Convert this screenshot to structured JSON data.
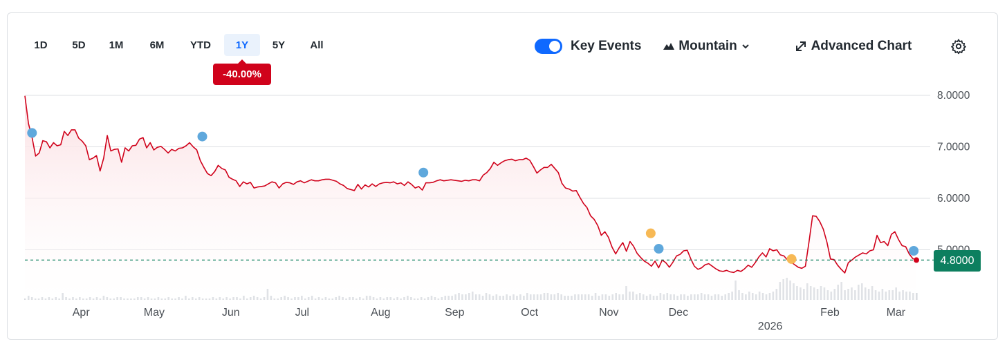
{
  "ranges": [
    {
      "label": "1D",
      "active": false
    },
    {
      "label": "5D",
      "active": false
    },
    {
      "label": "1M",
      "active": false
    },
    {
      "label": "6M",
      "active": false
    },
    {
      "label": "YTD",
      "active": false
    },
    {
      "label": "1Y",
      "active": true
    },
    {
      "label": "5Y",
      "active": false
    },
    {
      "label": "All",
      "active": false
    }
  ],
  "change_badge": "-40.00%",
  "controls": {
    "key_events_label": "Key Events",
    "key_events_on": true,
    "chart_type_label": "Mountain",
    "advanced_chart_label": "Advanced Chart",
    "icons": [
      "toggle-switch-icon",
      "mountain-chart-icon",
      "chevron-down-icon",
      "expand-arrows-icon",
      "gear-icon"
    ]
  },
  "current_price_label": "4.8000",
  "colors": {
    "line": "#d0021b",
    "area_fill": "#fbdfe2",
    "accent": "#0f69ff",
    "price_tag": "#0d7f5f",
    "dividend_event": "#5fa8dc",
    "split_event": "#f7b955",
    "volume": "#d7dadf"
  },
  "chart_data": {
    "type": "area",
    "y_ticks": [
      "8.0000",
      "7.0000",
      "6.0000",
      "5.0000"
    ],
    "ylim": [
      4.0,
      8.0
    ],
    "grid": true,
    "x_ticks": [
      {
        "label": "Apr",
        "t": 0.063
      },
      {
        "label": "May",
        "t": 0.145
      },
      {
        "label": "Jun",
        "t": 0.231
      },
      {
        "label": "Jul",
        "t": 0.311
      },
      {
        "label": "Aug",
        "t": 0.399
      },
      {
        "label": "Sep",
        "t": 0.482
      },
      {
        "label": "Oct",
        "t": 0.566
      },
      {
        "label": "Nov",
        "t": 0.655
      },
      {
        "label": "Dec",
        "t": 0.733
      },
      {
        "label": "Feb",
        "t": 0.903
      },
      {
        "label": "Mar",
        "t": 0.977
      }
    ],
    "year_marker": {
      "label": "2026",
      "t": 0.836
    },
    "reference_price": 4.8,
    "series": [
      {
        "values": [
          7.99,
          7.45,
          7.18,
          6.82,
          6.88,
          7.12,
          7.1,
          6.98,
          7.08,
          7.02,
          7.04,
          7.3,
          7.22,
          7.33,
          7.33,
          7.17,
          7.11,
          7.02,
          6.75,
          6.78,
          6.83,
          6.53,
          6.78,
          7.22,
          6.92,
          6.95,
          6.96,
          6.7,
          6.98,
          6.92,
          7.02,
          7.03,
          7.15,
          7.18,
          6.98,
          7.08,
          6.94,
          6.99,
          7.01,
          6.95,
          6.88,
          6.95,
          6.92,
          6.97,
          6.98,
          7.02,
          7.08,
          7.0,
          6.94,
          6.73,
          6.6,
          6.48,
          6.44,
          6.52,
          6.64,
          6.58,
          6.55,
          6.41,
          6.37,
          6.34,
          6.23,
          6.32,
          6.28,
          6.31,
          6.2,
          6.22,
          6.23,
          6.24,
          6.28,
          6.32,
          6.3,
          6.2,
          6.28,
          6.31,
          6.3,
          6.27,
          6.32,
          6.34,
          6.3,
          6.33,
          6.36,
          6.34,
          6.34,
          6.36,
          6.37,
          6.37,
          6.35,
          6.33,
          6.28,
          6.25,
          6.19,
          6.17,
          6.15,
          6.27,
          6.18,
          6.26,
          6.22,
          6.28,
          6.23,
          6.28,
          6.3,
          6.31,
          6.3,
          6.32,
          6.28,
          6.3,
          6.25,
          6.32,
          6.27,
          6.2,
          6.23,
          6.16,
          6.3,
          6.3,
          6.31,
          6.34,
          6.36,
          6.34,
          6.35,
          6.36,
          6.35,
          6.34,
          6.33,
          6.35,
          6.34,
          6.36,
          6.36,
          6.34,
          6.45,
          6.5,
          6.58,
          6.7,
          6.64,
          6.69,
          6.73,
          6.75,
          6.76,
          6.73,
          6.75,
          6.75,
          6.78,
          6.74,
          6.62,
          6.49,
          6.55,
          6.6,
          6.6,
          6.66,
          6.58,
          6.5,
          6.29,
          6.2,
          6.18,
          6.14,
          6.15,
          6.02,
          5.9,
          5.82,
          5.66,
          5.59,
          5.47,
          5.28,
          5.35,
          5.24,
          5.05,
          4.92,
          5.04,
          5.14,
          4.97,
          5.16,
          5.07,
          4.93,
          4.85,
          4.78,
          4.74,
          4.68,
          4.78,
          4.65,
          4.8,
          4.75,
          4.66,
          4.76,
          4.88,
          4.91,
          4.98,
          4.99,
          4.82,
          4.68,
          4.62,
          4.65,
          4.71,
          4.73,
          4.68,
          4.63,
          4.59,
          4.58,
          4.6,
          4.57,
          4.56,
          4.6,
          4.58,
          4.63,
          4.7,
          4.66,
          4.75,
          4.86,
          4.94,
          4.86,
          5.02,
          4.98,
          5.0,
          4.9,
          4.88,
          4.8,
          4.76,
          4.71,
          4.66,
          4.64,
          4.68,
          5.15,
          5.66,
          5.65,
          5.55,
          5.4,
          5.15,
          4.82,
          4.81,
          4.7,
          4.62,
          4.55,
          4.75,
          4.8,
          4.86,
          4.9,
          4.94,
          4.92,
          4.98,
          5.0,
          5.28,
          5.14,
          5.16,
          5.08,
          5.3,
          5.35,
          5.2,
          5.08,
          5.06,
          4.92,
          4.83,
          4.8
        ]
      }
    ],
    "key_events": [
      {
        "t": 0.008,
        "value": 7.27,
        "kind": "dividend"
      },
      {
        "t": 0.199,
        "value": 7.2,
        "kind": "dividend"
      },
      {
        "t": 0.447,
        "value": 6.5,
        "kind": "dividend"
      },
      {
        "t": 0.702,
        "value": 5.32,
        "kind": "split"
      },
      {
        "t": 0.711,
        "value": 5.02,
        "kind": "dividend"
      },
      {
        "t": 0.86,
        "value": 4.82,
        "kind": "split"
      },
      {
        "t": 0.997,
        "value": 4.98,
        "kind": "dividend"
      }
    ],
    "volume": [
      1,
      3,
      2,
      1,
      1,
      2,
      1,
      2,
      1,
      2,
      1,
      5,
      2,
      1,
      2,
      1,
      2,
      1,
      1,
      2,
      1,
      2,
      1,
      3,
      2,
      1,
      1,
      2,
      2,
      1,
      1,
      1,
      1,
      2,
      2,
      1,
      2,
      1,
      1,
      2,
      1,
      1,
      2,
      1,
      1,
      2,
      1,
      3,
      1,
      2,
      1,
      2,
      1,
      1,
      1,
      2,
      1,
      2,
      1,
      2,
      1,
      2,
      2,
      1,
      3,
      1,
      2,
      3,
      2,
      1,
      2,
      8,
      3,
      1,
      1,
      2,
      3,
      2,
      1,
      2,
      2,
      3,
      1,
      2,
      3,
      1,
      2,
      1,
      2,
      1,
      1,
      2,
      3,
      2,
      1,
      2,
      2,
      1,
      2,
      1,
      3,
      3,
      2,
      1,
      2,
      1,
      2,
      2,
      1,
      2,
      1,
      2,
      3,
      2,
      1,
      1,
      2,
      1,
      2,
      3,
      2,
      1,
      2,
      3,
      3,
      3,
      4,
      5,
      4,
      4,
      5,
      6,
      4,
      4,
      3,
      5,
      4,
      3,
      4,
      3,
      3,
      4,
      3,
      4,
      3,
      4,
      3,
      5,
      4,
      4,
      4,
      4,
      5,
      5,
      4,
      4,
      5,
      4,
      3,
      3,
      3,
      4,
      4,
      4,
      4,
      4,
      3,
      5,
      3,
      4,
      4,
      3,
      4,
      5,
      4,
      4,
      10,
      6,
      6,
      4,
      5,
      4,
      3,
      4,
      3,
      3,
      5,
      4,
      5,
      4,
      4,
      3,
      4,
      4,
      3,
      4,
      4,
      4,
      5,
      4,
      4,
      3,
      4,
      4,
      3,
      4,
      5,
      6,
      14,
      7,
      5,
      4,
      6,
      5,
      4,
      6,
      5,
      4,
      5,
      6,
      8,
      13,
      15,
      16,
      14,
      12,
      10,
      9,
      8,
      12,
      10,
      9,
      8,
      10,
      9,
      7,
      6,
      8,
      11,
      13,
      7,
      8,
      9,
      7,
      11,
      12,
      9,
      8,
      10,
      7,
      6,
      8,
      6,
      7,
      7,
      9,
      6,
      7,
      6,
      6,
      5,
      5
    ]
  }
}
